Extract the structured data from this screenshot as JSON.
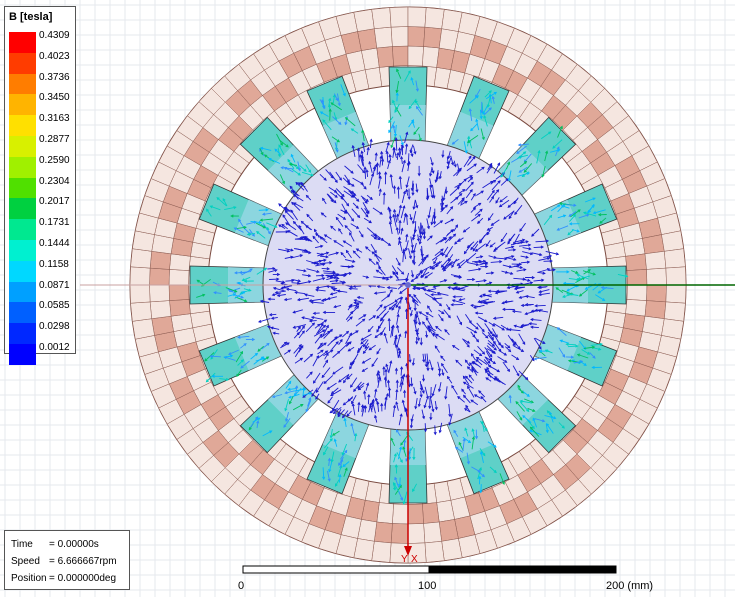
{
  "legend": {
    "title": "B [tesla]",
    "ticks": [
      "0.4309",
      "0.4023",
      "0.3736",
      "0.3450",
      "0.3163",
      "0.2877",
      "0.2590",
      "0.2304",
      "0.2017",
      "0.1731",
      "0.1444",
      "0.1158",
      "0.0871",
      "0.0585",
      "0.0298",
      "0.0012"
    ],
    "colors": [
      "#ff0000",
      "#ff3c00",
      "#ff7d00",
      "#ffb400",
      "#ffe000",
      "#d8f000",
      "#a0f000",
      "#50e000",
      "#00d040",
      "#00e890",
      "#00f0d0",
      "#00d8ff",
      "#00a0ff",
      "#0060ff",
      "#0028ff",
      "#0000ff"
    ]
  },
  "info": {
    "time_label": "Time",
    "time_value": "= 0.00000s",
    "speed_label": "Speed",
    "speed_value": "= 6.666667rpm",
    "position_label": "Position",
    "position_value": "= 0.000000deg"
  },
  "scale": {
    "labels": [
      "0",
      "100",
      "200 (mm)"
    ]
  },
  "axis": {
    "y_label": "Y",
    "x_label": "X"
  },
  "colors": {
    "coil_dark": "#e0a898",
    "coil_light": "#f5e6e0",
    "flux": "#1a1acc",
    "axis_x": "#006600",
    "axis_y": "#cc0000"
  }
}
